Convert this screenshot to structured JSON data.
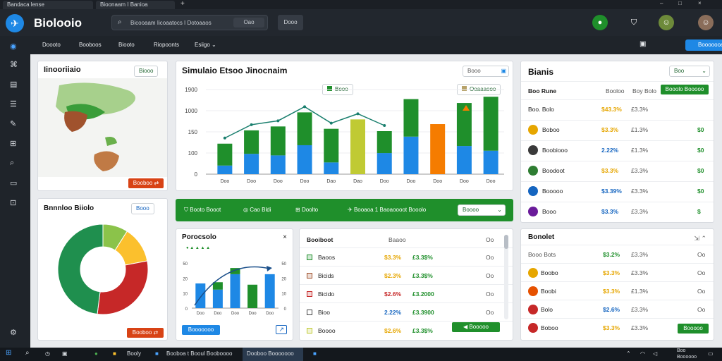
{
  "browser": {
    "tabs": [
      {
        "label": "Bandaca lense"
      },
      {
        "label": "Bioonaam I Banioa"
      }
    ],
    "new_tab": "+",
    "controls": [
      "–",
      "□",
      "×"
    ]
  },
  "app": {
    "title": "Biolooio",
    "search": {
      "placeholder": "Bicooaam Iicoaatocs I Dotoaaos",
      "button": "Oao"
    },
    "header_button": "Dooo",
    "accent": "#1e88e5",
    "green": "#1f8f2b"
  },
  "subnav": {
    "items": [
      "Doooto",
      "Booboos",
      "Biooto",
      "Riopoonts",
      "Esiigo ⌄"
    ],
    "cta": "Booooooas"
  },
  "sidebar": {
    "icons": [
      "globe-icon",
      "chart-icon",
      "document-icon",
      "list-icon",
      "feather-icon",
      "grid-icon",
      "search-icon",
      "chat-icon",
      "gamepad-icon",
      "settings-icon"
    ]
  },
  "map_card": {
    "title": "Iinooriiaio",
    "pill": "Biooo",
    "button": "Booboo ⇄"
  },
  "chart_card": {
    "title": "Simulaio Etsoo Jinocnaim",
    "input": "Booo",
    "legend": [
      "Booo",
      "Ooaaaooo"
    ],
    "ticks_y": [
      "1900",
      "1000",
      "150",
      "100",
      "0"
    ],
    "ticks_x": [
      "Doo",
      "Doo",
      "Doo",
      "Doo",
      "Dao",
      "Dao",
      "Doo",
      "Doo",
      "Doo",
      "Doo",
      "Doo"
    ]
  },
  "chart_data": [
    {
      "type": "bar",
      "categories": [
        "Doo",
        "Doo",
        "Doo",
        "Doo",
        "Dao",
        "Dao",
        "Doo",
        "Doo",
        "Doo",
        "Doo",
        "Doo"
      ],
      "series": [
        {
          "name": "Booo",
          "values": [
            280,
            300,
            370,
            420,
            430,
            0,
            280,
            480,
            0,
            550,
            690
          ]
        },
        {
          "name": "Ooaaaooo",
          "values": [
            110,
            260,
            240,
            370,
            150,
            700,
            270,
            480,
            640,
            360,
            300
          ]
        }
      ],
      "ylim": [
        0,
        1100
      ]
    },
    {
      "type": "pie",
      "categories": [
        "a",
        "b",
        "c",
        "d"
      ],
      "values": [
        48,
        30,
        13,
        9
      ],
      "colors": [
        "#1f8f4e",
        "#c62828",
        "#fbc02d",
        "#8bc34a"
      ]
    },
    {
      "type": "bar",
      "categories": [
        "Doo",
        "Doo",
        "Doo",
        "Doo",
        "Doo"
      ],
      "series": [
        {
          "name": "a",
          "values": [
            40,
            30,
            55,
            20,
            55
          ]
        },
        {
          "name": "b",
          "values": [
            0,
            12,
            10,
            18,
            0
          ]
        }
      ],
      "ylim": [
        0,
        80
      ]
    }
  ],
  "banner": {
    "items": [
      "Booto Booot",
      "Cao Bldi",
      "Doolto",
      "Booaoa 1 Baoaoooot Booolo"
    ],
    "select": "Boooo"
  },
  "donut_card": {
    "title": "Bnnnloo Biiolo",
    "pill": "Booo",
    "button": "Booboo ⇄"
  },
  "small_chart": {
    "title": "Porocsolo",
    "subtitle": "● ▲ ▲ ▲ ▲",
    "ticks_y": [
      "50",
      "20",
      "10",
      "0"
    ],
    "button": "Booooooo"
  },
  "table_mid": {
    "headers": [
      "Booiboot",
      "Baaoo",
      "Oo"
    ],
    "rows": [
      {
        "name": "Baoos",
        "v1": "$3.3%",
        "v2": "£3.3$%",
        "v3": "Oo"
      },
      {
        "name": "Bicids",
        "v1": "$2.3%",
        "v2": "£3.3$%",
        "v3": "Oo"
      },
      {
        "name": "Bicido",
        "v1": "$2.6%",
        "v2": "£3.2000",
        "v3": "Oo"
      },
      {
        "name": "Bioo",
        "v1": "2.22%",
        "v2": "£3.3900",
        "v3": "Oo"
      },
      {
        "name": "Boooo",
        "v1": "$2.6%",
        "v2": "£3.3$%",
        "v3": ""
      }
    ],
    "button": "Booooo"
  },
  "table_right": {
    "title": "Bianis",
    "pill": "Boo",
    "headers": [
      "Boo Rune",
      "Booloo",
      "Boy Bolo",
      "Booolo Booooo"
    ],
    "rows": [
      {
        "name": "Boo. Bolo",
        "v1": "$43.3%",
        "v2": "£3.3%",
        "v3": ""
      },
      {
        "name": "Boboo",
        "v1": "$3.3%",
        "v2": "£1.3%",
        "v3": "$0"
      },
      {
        "name": "Boobiooo",
        "v1": "2.22%",
        "v2": "£1.3%",
        "v3": "$0"
      },
      {
        "name": "Boodoot",
        "v1": "$3.3%",
        "v2": "£3.3%",
        "v3": "$0"
      },
      {
        "name": "Booooo",
        "v1": "$3.39%",
        "v2": "£3.3%",
        "v3": "$0"
      },
      {
        "name": "Booo",
        "v1": "$3.3%",
        "v2": "£3.3%",
        "v3": "$"
      }
    ]
  },
  "table_br": {
    "title": "Bonolet",
    "headers": [
      "Booo Bots",
      "$3.2%",
      "£3.3%",
      "Oo"
    ],
    "rows": [
      {
        "name": "Boobo",
        "v1": "$3.3%",
        "v2": "£3.3%",
        "v3": "Oo"
      },
      {
        "name": "Boobi",
        "v1": "$3.3%",
        "v2": "£1.3%",
        "v3": "Oo"
      },
      {
        "name": "Bolo",
        "v1": "$2.6%",
        "v2": "£3.3%",
        "v3": "Oo"
      },
      {
        "name": "Boboo",
        "v1": "$3.3%",
        "v2": "£3.3%",
        "v3": ""
      }
    ],
    "button": "Booooo"
  },
  "taskbar": {
    "items": [
      "Booly",
      "Booboa t Booul Booboooo",
      "Dooboo Booooooo"
    ],
    "tray": [
      "Boo",
      "Boooooo"
    ]
  }
}
